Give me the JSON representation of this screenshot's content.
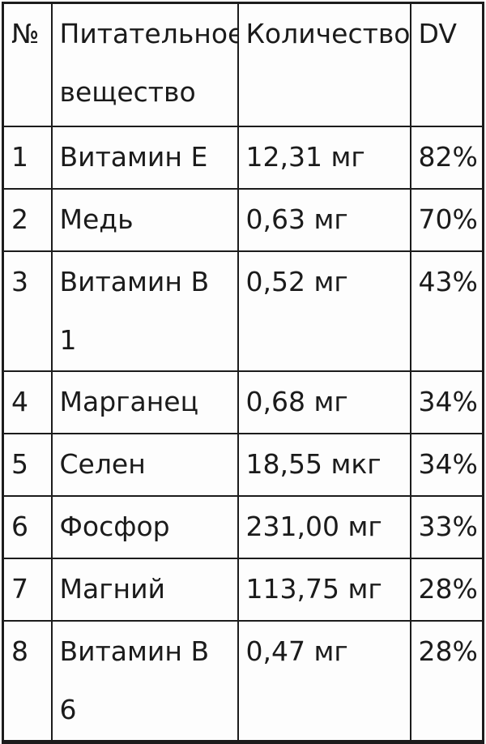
{
  "table": {
    "headers": [
      "№",
      "Питательное вещество",
      "Количество",
      "DV"
    ],
    "rows": [
      {
        "num": "1",
        "nutrient": "Витамин E",
        "amount": "12,31 мг",
        "dv": "82%"
      },
      {
        "num": "2",
        "nutrient": "Медь",
        "amount": "0,63 мг",
        "dv": "70%"
      },
      {
        "num": "3",
        "nutrient": "Витамин B 1",
        "amount": "0,52 мг",
        "dv": "43%"
      },
      {
        "num": "4",
        "nutrient": "Марганец",
        "amount": "0,68 мг",
        "dv": "34%"
      },
      {
        "num": "5",
        "nutrient": "Селен",
        "amount": "18,55 мкг",
        "dv": "34%"
      },
      {
        "num": "6",
        "nutrient": "Фосфор",
        "amount": "231,00 мг",
        "dv": "33%"
      },
      {
        "num": "7",
        "nutrient": "Магний",
        "amount": "113,75 мг",
        "dv": "28%"
      },
      {
        "num": "8",
        "nutrient": "Витамин B 6",
        "amount": "0,47 мг",
        "dv": "28%"
      }
    ],
    "colors": {
      "text": "#1b1b1b",
      "border": "#1c1c1c",
      "cell_background": "#fdfdfd",
      "page_background": "#ffffff"
    }
  }
}
